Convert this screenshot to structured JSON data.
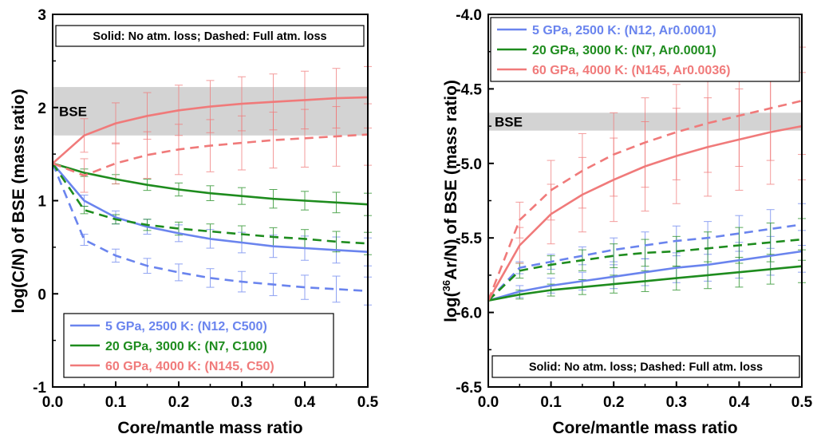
{
  "colors": {
    "blue": "#6a84ee",
    "green": "#1e8c1e",
    "red": "#f07a7a",
    "band": "#d3d3d3"
  },
  "chart_data": [
    {
      "type": "line",
      "xlabel": "Core/mantle mass ratio",
      "ylabel": "log(C/N) of BSE (mass ratio)",
      "xlim": [
        0,
        0.5
      ],
      "ylim": [
        -1,
        3
      ],
      "xticks": [
        "0.0",
        "0.1",
        "0.2",
        "0.3",
        "0.4",
        "0.5"
      ],
      "yticks": [
        "-1",
        "0",
        "1",
        "2",
        "3"
      ],
      "band": {
        "label": "BSE",
        "range": [
          1.7,
          2.22
        ]
      },
      "note": "Solid: No atm. loss; Dashed: Full atm. loss",
      "legend_position": "bottom-left",
      "series": [
        {
          "name": "5 GPa, 2500 K: (N12, C500)",
          "color": "blue",
          "style": "solid",
          "x": [
            0,
            0.05,
            0.1,
            0.15,
            0.2,
            0.25,
            0.3,
            0.35,
            0.4,
            0.45,
            0.5
          ],
          "y": [
            1.4,
            1.0,
            0.82,
            0.72,
            0.65,
            0.59,
            0.55,
            0.51,
            0.49,
            0.47,
            0.45
          ],
          "err": [
            0,
            0.06,
            0.07,
            0.08,
            0.09,
            0.1,
            0.11,
            0.12,
            0.13,
            0.14,
            0.15
          ]
        },
        {
          "name": "5 GPa, 2500 K: (N12, C500)",
          "color": "blue",
          "style": "dashed",
          "x": [
            0,
            0.05,
            0.1,
            0.15,
            0.2,
            0.25,
            0.3,
            0.35,
            0.4,
            0.45,
            0.5
          ],
          "y": [
            1.4,
            0.58,
            0.41,
            0.3,
            0.23,
            0.17,
            0.13,
            0.1,
            0.07,
            0.05,
            0.03
          ],
          "err": [
            0,
            0.06,
            0.07,
            0.08,
            0.09,
            0.1,
            0.11,
            0.12,
            0.13,
            0.14,
            0.15
          ]
        },
        {
          "name": "20 GPa, 3000 K: (N7, C100)",
          "color": "green",
          "style": "solid",
          "x": [
            0,
            0.05,
            0.1,
            0.15,
            0.2,
            0.25,
            0.3,
            0.35,
            0.4,
            0.45,
            0.5
          ],
          "y": [
            1.4,
            1.3,
            1.23,
            1.17,
            1.12,
            1.08,
            1.05,
            1.02,
            1.0,
            0.98,
            0.96
          ],
          "err": [
            0,
            0.04,
            0.05,
            0.06,
            0.07,
            0.08,
            0.09,
            0.1,
            0.1,
            0.11,
            0.12
          ]
        },
        {
          "name": "20 GPa, 3000 K: (N7, C100)",
          "color": "green",
          "style": "dashed",
          "x": [
            0,
            0.05,
            0.1,
            0.15,
            0.2,
            0.25,
            0.3,
            0.35,
            0.4,
            0.45,
            0.5
          ],
          "y": [
            1.4,
            0.9,
            0.8,
            0.74,
            0.7,
            0.67,
            0.64,
            0.61,
            0.59,
            0.56,
            0.54
          ],
          "err": [
            0,
            0.04,
            0.05,
            0.06,
            0.07,
            0.08,
            0.09,
            0.1,
            0.1,
            0.11,
            0.12
          ]
        },
        {
          "name": "60 GPa, 4000 K: (N145, C50)",
          "color": "red",
          "style": "solid",
          "x": [
            0,
            0.05,
            0.1,
            0.15,
            0.2,
            0.25,
            0.3,
            0.35,
            0.4,
            0.45,
            0.5
          ],
          "y": [
            1.4,
            1.7,
            1.83,
            1.91,
            1.97,
            2.01,
            2.04,
            2.06,
            2.08,
            2.1,
            2.11
          ],
          "err": [
            0,
            0.18,
            0.22,
            0.25,
            0.27,
            0.28,
            0.29,
            0.3,
            0.31,
            0.32,
            0.33
          ]
        },
        {
          "name": "60 GPa, 4000 K: (N145, C50)",
          "color": "red",
          "style": "dashed",
          "x": [
            0,
            0.05,
            0.1,
            0.15,
            0.2,
            0.25,
            0.3,
            0.35,
            0.4,
            0.45,
            0.5
          ],
          "y": [
            1.4,
            1.27,
            1.4,
            1.49,
            1.55,
            1.59,
            1.62,
            1.65,
            1.67,
            1.69,
            1.71
          ],
          "err": [
            0,
            0.18,
            0.22,
            0.25,
            0.27,
            0.28,
            0.29,
            0.3,
            0.31,
            0.32,
            0.33
          ]
        }
      ]
    },
    {
      "type": "line",
      "xlabel": "Core/mantle mass ratio",
      "ylabel_prefix": "log(",
      "ylabel_sup": "36",
      "ylabel_suffix": "Ar/N) of BSE (mass ratio)",
      "xlim": [
        0,
        0.5
      ],
      "ylim": [
        -6.5,
        -4.0
      ],
      "xticks": [
        "0.0",
        "0.1",
        "0.2",
        "0.3",
        "0.4",
        "0.5"
      ],
      "yticks": [
        "-6.5",
        "-6.0",
        "-5.5",
        "-5.0",
        "-4.5",
        "-4.0"
      ],
      "band": {
        "label": "BSE",
        "range": [
          -4.78,
          -4.66
        ]
      },
      "note": "Solid: No atm. loss; Dashed: Full atm. loss",
      "legend_position": "top",
      "series": [
        {
          "name": "5 GPa, 2500 K: (N12, Ar0.0001)",
          "color": "blue",
          "style": "solid",
          "x": [
            0,
            0.05,
            0.1,
            0.15,
            0.2,
            0.25,
            0.3,
            0.35,
            0.4,
            0.45,
            0.5
          ],
          "y": [
            -5.92,
            -5.86,
            -5.82,
            -5.79,
            -5.76,
            -5.73,
            -5.7,
            -5.68,
            -5.65,
            -5.62,
            -5.59
          ],
          "err": [
            0,
            0.04,
            0.05,
            0.06,
            0.08,
            0.09,
            0.1,
            0.11,
            0.12,
            0.13,
            0.14
          ]
        },
        {
          "name": "5 GPa, 2500 K: (N12, Ar0.0001)",
          "color": "blue",
          "style": "dashed",
          "x": [
            0,
            0.05,
            0.1,
            0.15,
            0.2,
            0.25,
            0.3,
            0.35,
            0.4,
            0.45,
            0.5
          ],
          "y": [
            -5.92,
            -5.7,
            -5.66,
            -5.62,
            -5.58,
            -5.55,
            -5.52,
            -5.5,
            -5.47,
            -5.44,
            -5.41
          ],
          "err": [
            0,
            0.04,
            0.05,
            0.06,
            0.08,
            0.09,
            0.1,
            0.11,
            0.12,
            0.13,
            0.14
          ]
        },
        {
          "name": "20 GPa, 3000 K: (N7, Ar0.0001)",
          "color": "green",
          "style": "solid",
          "x": [
            0,
            0.05,
            0.1,
            0.15,
            0.2,
            0.25,
            0.3,
            0.35,
            0.4,
            0.45,
            0.5
          ],
          "y": [
            -5.92,
            -5.88,
            -5.85,
            -5.83,
            -5.81,
            -5.79,
            -5.77,
            -5.75,
            -5.73,
            -5.71,
            -5.69
          ],
          "err": [
            0,
            0.03,
            0.04,
            0.05,
            0.06,
            0.07,
            0.08,
            0.09,
            0.1,
            0.1,
            0.11
          ]
        },
        {
          "name": "20 GPa, 3000 K: (N7, Ar0.0001)",
          "color": "green",
          "style": "dashed",
          "x": [
            0,
            0.05,
            0.1,
            0.15,
            0.2,
            0.25,
            0.3,
            0.35,
            0.4,
            0.45,
            0.5
          ],
          "y": [
            -5.92,
            -5.72,
            -5.68,
            -5.65,
            -5.62,
            -5.6,
            -5.59,
            -5.57,
            -5.55,
            -5.53,
            -5.51
          ],
          "err": [
            0,
            0.05,
            0.06,
            0.07,
            0.08,
            0.09,
            0.1,
            0.11,
            0.12,
            0.13,
            0.14
          ]
        },
        {
          "name": "60 GPa, 4000 K: (N145, Ar0.0036)",
          "color": "red",
          "style": "solid",
          "x": [
            0,
            0.05,
            0.1,
            0.15,
            0.2,
            0.25,
            0.3,
            0.35,
            0.4,
            0.45,
            0.5
          ],
          "y": [
            -5.92,
            -5.55,
            -5.34,
            -5.21,
            -5.11,
            -5.02,
            -4.95,
            -4.89,
            -4.84,
            -4.79,
            -4.75
          ],
          "err": [
            0,
            0.12,
            0.2,
            0.25,
            0.28,
            0.3,
            0.32,
            0.33,
            0.34,
            0.35,
            0.36
          ]
        },
        {
          "name": "60 GPa, 4000 K: (N145, Ar0.0036)",
          "color": "red",
          "style": "dashed",
          "x": [
            0,
            0.05,
            0.1,
            0.15,
            0.2,
            0.25,
            0.3,
            0.35,
            0.4,
            0.45,
            0.5
          ],
          "y": [
            -5.92,
            -5.38,
            -5.18,
            -5.05,
            -4.94,
            -4.86,
            -4.79,
            -4.73,
            -4.68,
            -4.63,
            -4.58
          ],
          "err": [
            0,
            0.12,
            0.2,
            0.25,
            0.28,
            0.3,
            0.32,
            0.33,
            0.34,
            0.35,
            0.36
          ]
        }
      ]
    }
  ]
}
